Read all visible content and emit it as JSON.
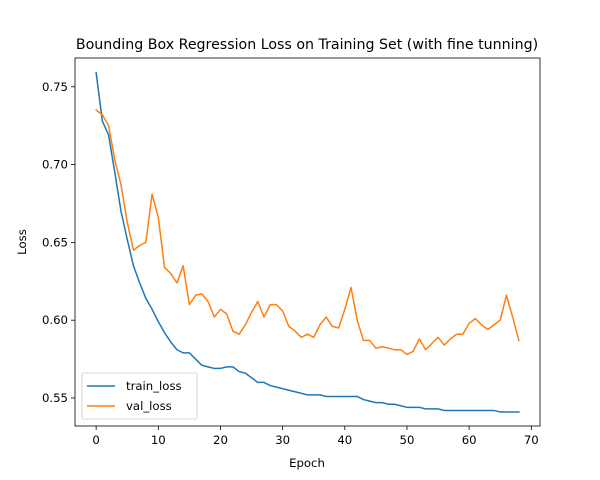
{
  "chart_data": {
    "type": "line",
    "title": "Bounding Box Regression Loss on Training Set (with fine tunning)",
    "xlabel": "Epoch",
    "ylabel": "Loss",
    "xlim": [
      -3.4,
      71.4
    ],
    "ylim": [
      0.532,
      0.7685
    ],
    "xticks": [
      0,
      10,
      20,
      30,
      40,
      50,
      60,
      70
    ],
    "xtick_labels": [
      "0",
      "10",
      "20",
      "30",
      "40",
      "50",
      "60",
      "70"
    ],
    "yticks": [
      0.55,
      0.6,
      0.65,
      0.7,
      0.75
    ],
    "ytick_labels": [
      "0.55",
      "0.60",
      "0.65",
      "0.70",
      "0.75"
    ],
    "grid": false,
    "legend_position": "lower-left",
    "series": [
      {
        "name": "train_loss",
        "color": "#1f77b4",
        "x": [
          0,
          1,
          2,
          3,
          4,
          5,
          6,
          7,
          8,
          9,
          10,
          11,
          12,
          13,
          14,
          15,
          16,
          17,
          18,
          19,
          20,
          21,
          22,
          23,
          24,
          25,
          26,
          27,
          28,
          29,
          30,
          31,
          32,
          33,
          34,
          35,
          36,
          37,
          38,
          39,
          40,
          41,
          42,
          43,
          44,
          45,
          46,
          47,
          48,
          49,
          50,
          51,
          52,
          53,
          54,
          55,
          56,
          57,
          58,
          59,
          60,
          61,
          62,
          63,
          64,
          65,
          66,
          67,
          68
        ],
        "values": [
          0.759,
          0.728,
          0.719,
          0.695,
          0.67,
          0.652,
          0.635,
          0.624,
          0.614,
          0.607,
          0.599,
          0.592,
          0.586,
          0.581,
          0.579,
          0.579,
          0.575,
          0.571,
          0.57,
          0.569,
          0.569,
          0.57,
          0.57,
          0.567,
          0.566,
          0.563,
          0.56,
          0.56,
          0.558,
          0.557,
          0.556,
          0.555,
          0.554,
          0.553,
          0.552,
          0.552,
          0.552,
          0.551,
          0.551,
          0.551,
          0.551,
          0.551,
          0.551,
          0.549,
          0.548,
          0.547,
          0.547,
          0.546,
          0.546,
          0.545,
          0.544,
          0.544,
          0.544,
          0.543,
          0.543,
          0.543,
          0.542,
          0.542,
          0.542,
          0.542,
          0.542,
          0.542,
          0.542,
          0.542,
          0.542,
          0.541,
          0.541,
          0.541,
          0.541
        ]
      },
      {
        "name": "val_loss",
        "color": "#ff7f0e",
        "x": [
          0,
          1,
          2,
          3,
          4,
          5,
          6,
          7,
          8,
          9,
          10,
          11,
          12,
          13,
          14,
          15,
          16,
          17,
          18,
          19,
          20,
          21,
          22,
          23,
          24,
          25,
          26,
          27,
          28,
          29,
          30,
          31,
          32,
          33,
          34,
          35,
          36,
          37,
          38,
          39,
          40,
          41,
          42,
          43,
          44,
          45,
          46,
          47,
          48,
          49,
          50,
          51,
          52,
          53,
          54,
          55,
          56,
          57,
          58,
          59,
          60,
          61,
          62,
          63,
          64,
          65,
          66,
          67,
          68
        ],
        "values": [
          0.735,
          0.732,
          0.725,
          0.703,
          0.687,
          0.663,
          0.645,
          0.648,
          0.65,
          0.681,
          0.666,
          0.634,
          0.63,
          0.624,
          0.635,
          0.61,
          0.616,
          0.617,
          0.612,
          0.602,
          0.607,
          0.604,
          0.593,
          0.591,
          0.597,
          0.605,
          0.612,
          0.602,
          0.61,
          0.61,
          0.606,
          0.596,
          0.593,
          0.589,
          0.591,
          0.589,
          0.597,
          0.602,
          0.596,
          0.595,
          0.607,
          0.621,
          0.6,
          0.587,
          0.587,
          0.582,
          0.583,
          0.582,
          0.581,
          0.581,
          0.578,
          0.58,
          0.588,
          0.581,
          0.585,
          0.589,
          0.584,
          0.588,
          0.591,
          0.591,
          0.598,
          0.601,
          0.597,
          0.594,
          0.597,
          0.6,
          0.616,
          0.602,
          0.587
        ]
      }
    ]
  }
}
